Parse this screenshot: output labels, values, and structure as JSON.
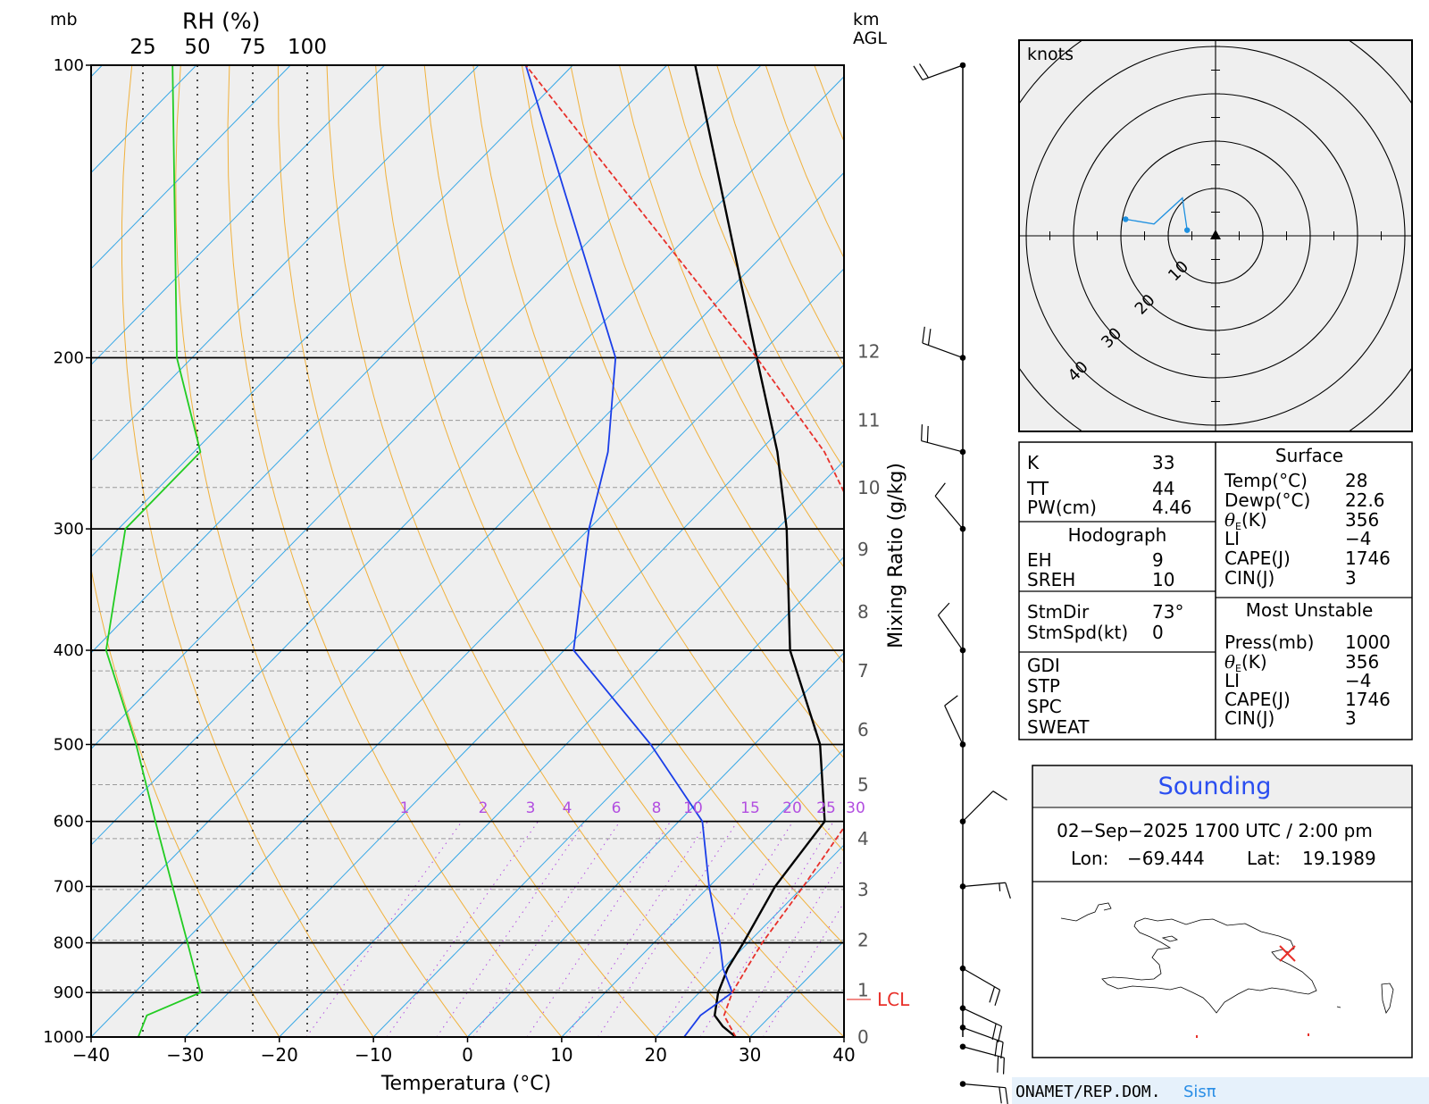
{
  "chart_data": [
    {
      "type": "line",
      "subtype": "skew-t-log-p",
      "xlabel": "Temperatura (°C)",
      "ylabel_left": "mb",
      "ylabel_right": "km AGL",
      "rh_axis_title": "RH (%)",
      "mixing_ratio_title": "Mixing Ratio (g/kg)",
      "xlim": [
        -40,
        40
      ],
      "pressure_range": [
        100,
        1000
      ],
      "log_pressure_axis": true,
      "x_ticks": [
        "−40",
        "−30",
        "−20",
        "−10",
        "0",
        "10",
        "20",
        "30",
        "40"
      ],
      "pressure_ticks": [
        "100",
        "200",
        "300",
        "400",
        "500",
        "600",
        "700",
        "800",
        "900",
        "1000"
      ],
      "rh_ticks": [
        "25",
        "50",
        "75",
        "100"
      ],
      "height_ticks_km": [
        "12",
        "11",
        "10",
        "9",
        "8",
        "7",
        "6",
        "5",
        "4",
        "3",
        "2",
        "1",
        "0"
      ],
      "mixing_ratio_labels": [
        "1",
        "2",
        "3",
        "4",
        "6",
        "8",
        "10",
        "15",
        "20",
        "25",
        "30"
      ],
      "lcl_label": "LCL",
      "lcl_pressure_mb": 890,
      "series": [
        {
          "color": "#000000",
          "points": [
            [
              1000,
              28.5
            ],
            [
              975,
              26
            ],
            [
              950,
              24
            ],
            [
              900,
              22
            ],
            [
              850,
              20.5
            ],
            [
              800,
              19.5
            ],
            [
              700,
              17
            ],
            [
              600,
              15.5
            ],
            [
              500,
              7
            ],
            [
              400,
              -6
            ],
            [
              300,
              -19
            ],
            [
              250,
              -28
            ],
            [
              200,
              -40
            ],
            [
              100,
              -77
            ]
          ]
        },
        {
          "color": "#1a3ee8",
          "points": [
            [
              1000,
              23
            ],
            [
              950,
              22.5
            ],
            [
              900,
              23.5
            ],
            [
              850,
              20
            ],
            [
              800,
              17
            ],
            [
              700,
              10
            ],
            [
              600,
              2.5
            ],
            [
              500,
              -11
            ],
            [
              400,
              -29
            ],
            [
              300,
              -40
            ],
            [
              250,
              -46
            ],
            [
              200,
              -55
            ],
            [
              100,
              -95
            ]
          ]
        },
        {
          "color": "#e8302a",
          "dashed": true,
          "points": [
            [
              1000,
              28.5
            ],
            [
              950,
              25
            ],
            [
              900,
              23.5
            ],
            [
              850,
              22.5
            ],
            [
              800,
              21.5
            ],
            [
              700,
              20
            ],
            [
              600,
              18
            ],
            [
              500,
              13
            ],
            [
              400,
              5
            ],
            [
              350,
              -1
            ],
            [
              300,
              -11
            ],
            [
              250,
              -23
            ],
            [
              200,
              -40
            ],
            [
              100,
              -95
            ]
          ]
        },
        {
          "color": "#22cc22",
          "points": [
            [
              1000,
              22
            ],
            [
              950,
              26
            ],
            [
              900,
              51
            ],
            [
              800,
              45
            ],
            [
              700,
              38
            ],
            [
              600,
              30
            ],
            [
              500,
              21
            ],
            [
              400,
              7
            ],
            [
              300,
              16
            ],
            [
              250,
              51
            ],
            [
              200,
              40
            ],
            [
              100,
              38
            ]
          ]
        }
      ]
    },
    {
      "type": "scatter",
      "subtype": "hodograph",
      "unit_label": "knots",
      "ring_labels": [
        "10",
        "20",
        "30",
        "40"
      ],
      "points": [
        [
          -19,
          3.5
        ],
        [
          -13,
          2.5
        ],
        [
          -7,
          8
        ],
        [
          -6,
          1.2
        ]
      ]
    }
  ],
  "wind_barbs": [
    {
      "p": 100,
      "dir": 250,
      "spd": 20
    },
    {
      "p": 200,
      "dir": 290,
      "spd": 20
    },
    {
      "p": 250,
      "dir": 285,
      "spd": 20
    },
    {
      "p": 300,
      "dir": 320,
      "spd": 10
    },
    {
      "p": 400,
      "dir": 325,
      "spd": 10
    },
    {
      "p": 500,
      "dir": 335,
      "spd": 10
    },
    {
      "p": 600,
      "dir": 45,
      "spd": 10
    },
    {
      "p": 700,
      "dir": 85,
      "spd": 5
    },
    {
      "p": 850,
      "dir": 120,
      "spd": 20
    },
    {
      "p": 900,
      "dir": 115,
      "spd": 20
    },
    {
      "p": 925,
      "dir": 110,
      "spd": 20
    },
    {
      "p": 950,
      "dir": 105,
      "spd": 20
    },
    {
      "p": 1000,
      "dir": 95,
      "spd": 20
    }
  ],
  "indices": {
    "k_label": "K",
    "k_value": "33",
    "tt_label": "TT",
    "tt_value": "44",
    "pw_label": "PW(cm)",
    "pw_value": "4.46",
    "hodograph_title": "Hodograph",
    "eh_label": "EH",
    "eh_value": "9",
    "sreh_label": "SREH",
    "sreh_value": "10",
    "stmdir_label": "StmDir",
    "stmdir_value": "73°",
    "stmspd_label": "StmSpd(kt)",
    "stmspd_value": "0",
    "gdi_label": "GDI",
    "stp_label": "STP",
    "spc_label": "SPC",
    "sweat_label": "SWEAT"
  },
  "surface": {
    "title": "Surface",
    "temp_label": "Temp(°C)",
    "temp_value": "28",
    "dewp_label": "Dewp(°C)",
    "dewp_value": "22.6",
    "theta_label": "(K)",
    "theta_value": "356",
    "li_label": "LI",
    "li_value": "−4",
    "cape_label": "CAPE(J)",
    "cape_value": "1746",
    "cin_label": "CIN(J)",
    "cin_value": "3"
  },
  "most_unstable": {
    "title": "Most Unstable",
    "press_label": "Press(mb)",
    "press_value": "1000",
    "theta_label": "(K)",
    "theta_value": "356",
    "li_label": "LI",
    "li_value": "−4",
    "cape_label": "CAPE(J)",
    "cape_value": "1746",
    "cin_label": "CIN(J)",
    "cin_value": "3"
  },
  "sounding": {
    "title": "Sounding",
    "datetime": "02−Sep−2025 1700  UTC / 2:00 pm",
    "lon_label": "Lon:",
    "lon_value": "−69.444",
    "lat_label": "Lat:",
    "lat_value": "19.1989"
  },
  "footer": {
    "org": "ONAMET/REP.DOM.",
    "brand": "Sisπ"
  },
  "colors": {
    "panel_bg": "#efefef",
    "isotherm": "#36a7e6",
    "dry_adiabat": "#f0b13c",
    "mixing_ratio": "#b24ee0",
    "lcl": "#e8302a",
    "accent_blue": "#2a4ef0",
    "footer_bg": "#e6f1fb"
  }
}
